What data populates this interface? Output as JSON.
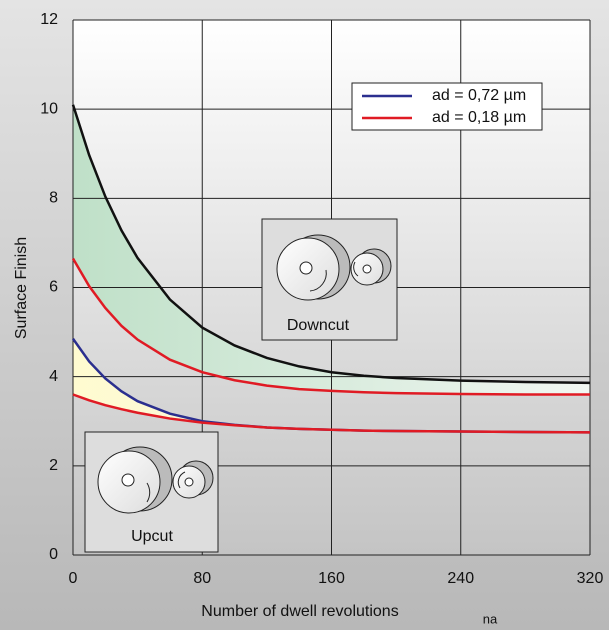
{
  "chart_data": {
    "type": "line",
    "y_label": "Surface Finish",
    "x_label": "Number of dwell revolutions",
    "x_symbol": "na",
    "x": [
      0,
      10,
      20,
      30,
      40,
      60,
      80,
      100,
      120,
      140,
      160,
      180,
      200,
      240,
      280,
      320
    ],
    "series": [
      {
        "color": "#111111",
        "values": [
          10.1,
          8.97,
          8.04,
          7.28,
          6.66,
          5.73,
          5.1,
          4.7,
          4.42,
          4.23,
          4.1,
          4.02,
          3.97,
          3.91,
          3.88,
          3.86
        ]
      },
      {
        "color": "#e01b24",
        "values": [
          6.65,
          6.03,
          5.54,
          5.14,
          4.83,
          4.38,
          4.1,
          3.92,
          3.8,
          3.72,
          3.68,
          3.65,
          3.63,
          3.61,
          3.6,
          3.6
        ]
      },
      {
        "name": "ad = 0,72 µm",
        "color": "#2b2f8f",
        "values": [
          4.85,
          4.34,
          3.96,
          3.67,
          3.45,
          3.17,
          3.0,
          2.92,
          2.86,
          2.83,
          2.81,
          2.79,
          2.78,
          2.77,
          2.76,
          2.75
        ]
      },
      {
        "name": "ad = 0,18 µm",
        "color": "#e01b24",
        "values": [
          3.6,
          3.47,
          3.36,
          3.27,
          3.19,
          3.06,
          2.97,
          2.91,
          2.86,
          2.83,
          2.81,
          2.79,
          2.78,
          2.77,
          2.76,
          2.75
        ]
      }
    ],
    "annotations": [
      "Downcut",
      "Upcut"
    ],
    "xlim": [
      0,
      320
    ],
    "xticks": [
      0,
      80,
      160,
      240,
      320
    ],
    "ylim": [
      0,
      12
    ],
    "yticks": [
      0,
      2,
      4,
      6,
      8,
      10,
      12
    ],
    "grid": true
  }
}
